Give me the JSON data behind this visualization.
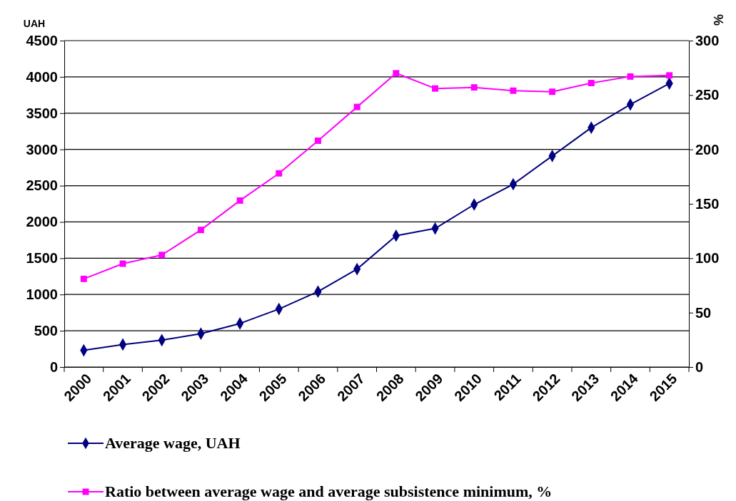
{
  "chart_data": {
    "type": "line",
    "ylabel": "UAH",
    "y2label": "%",
    "categories": [
      "2000",
      "2001",
      "2002",
      "2003",
      "2004",
      "2005",
      "2006",
      "2007",
      "2008",
      "2009",
      "2010",
      "2011",
      "2012",
      "2013",
      "2014",
      "2015"
    ],
    "series": [
      {
        "name": "Average wage, UAH",
        "color": "#000080",
        "marker": "diamond",
        "values": [
          230,
          310,
          370,
          460,
          600,
          800,
          1040,
          1350,
          1810,
          1910,
          2240,
          2520,
          2910,
          3300,
          3620,
          3910
        ]
      },
      {
        "name": "Ratio between average wage and average subsistence minimum, %",
        "color": "#ff00ff",
        "marker": "square",
        "axis": "y2",
        "values": [
          81,
          95,
          103,
          126,
          153,
          178,
          208,
          239,
          270,
          256,
          257,
          254,
          253,
          261,
          267,
          268
        ]
      }
    ],
    "ylim": [
      0,
      4500
    ],
    "yticks": [
      0,
      500,
      1000,
      1500,
      2000,
      2500,
      3000,
      3500,
      4000,
      4500
    ],
    "y2lim": [
      0,
      300
    ],
    "y2ticks": [
      0,
      50,
      100,
      150,
      200,
      250,
      300
    ],
    "grid": "y",
    "legend": "bottom",
    "line_style": "solid"
  }
}
